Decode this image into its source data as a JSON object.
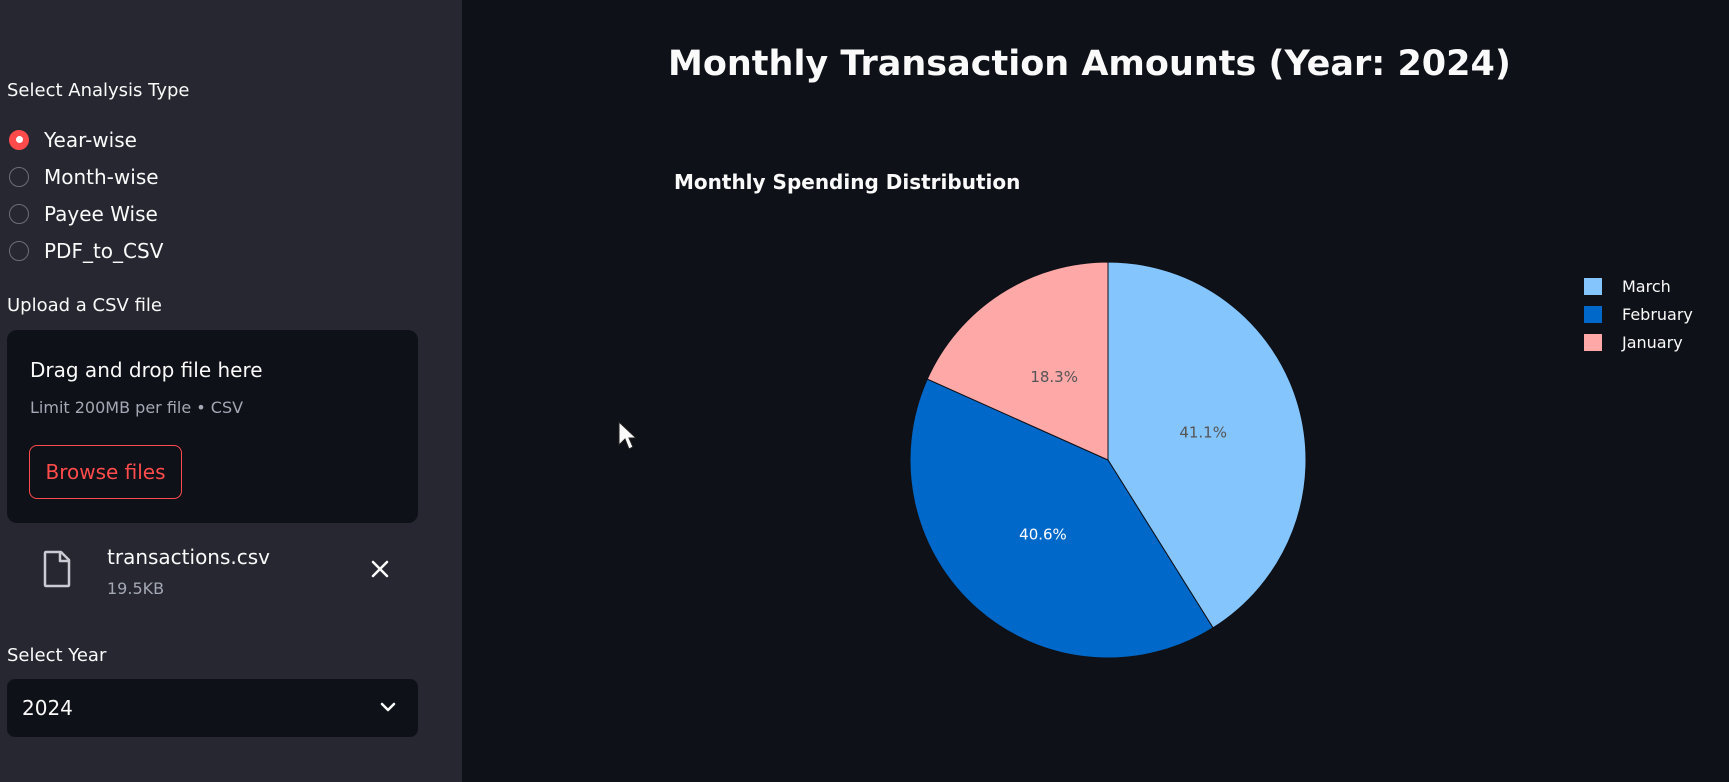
{
  "sidebar": {
    "analysis_label": "Select Analysis Type",
    "analysis_options": [
      {
        "label": "Year-wise",
        "selected": true
      },
      {
        "label": "Month-wise",
        "selected": false
      },
      {
        "label": "Payee Wise",
        "selected": false
      },
      {
        "label": "PDF_to_CSV",
        "selected": false
      }
    ],
    "upload_label": "Upload a CSV file",
    "dropzone": {
      "title": "Drag and drop file here",
      "limit": "Limit 200MB per file • CSV",
      "browse_label": "Browse files"
    },
    "uploaded_file": {
      "name": "transactions.csv",
      "size": "19.5KB"
    },
    "year_label": "Select Year",
    "year_value": "2024"
  },
  "main": {
    "title": "Monthly Transaction Amounts (Year: 2024)"
  },
  "colors": {
    "accent": "#ff4b4b",
    "sidebar_bg": "#262730",
    "main_bg": "#0e1117"
  },
  "chart_data": {
    "type": "pie",
    "title": "Monthly Spending Distribution",
    "categories": [
      "March",
      "February",
      "January"
    ],
    "values": [
      41.1,
      40.6,
      18.3
    ],
    "labels": [
      "41.1%",
      "40.6%",
      "18.3%"
    ],
    "colors": [
      "#85c5fe",
      "#0068c9",
      "#ffa8a8"
    ],
    "label_colors": [
      "#555555",
      "#ffffff",
      "#555555"
    ],
    "legend_position": "right"
  }
}
